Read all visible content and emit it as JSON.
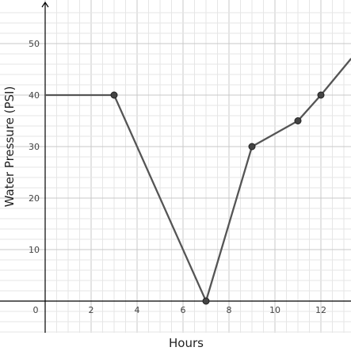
{
  "chart_data": {
    "type": "line",
    "xlabel": "Hours",
    "ylabel": "Water Pressure (PSI)",
    "xlim": [
      -0.4,
      13.3
    ],
    "ylim": [
      -6,
      57
    ],
    "x_ticks": [
      "0",
      "2",
      "4",
      "6",
      "8",
      "10",
      "12"
    ],
    "y_ticks": [
      "10",
      "20",
      "30",
      "40",
      "50"
    ],
    "grid": true,
    "series": [
      {
        "color": "#555555",
        "x": [
          0,
          3,
          7,
          9,
          11,
          12,
          13.3
        ],
        "y": [
          40,
          40,
          0,
          30,
          35,
          40,
          47
        ],
        "markers": [
          false,
          true,
          true,
          true,
          true,
          true,
          false
        ]
      }
    ],
    "colors": {
      "minor_grid": "#e6e6e6",
      "major_grid": "#c8c8c8",
      "axis": "#000000",
      "marker": "#444444"
    }
  }
}
